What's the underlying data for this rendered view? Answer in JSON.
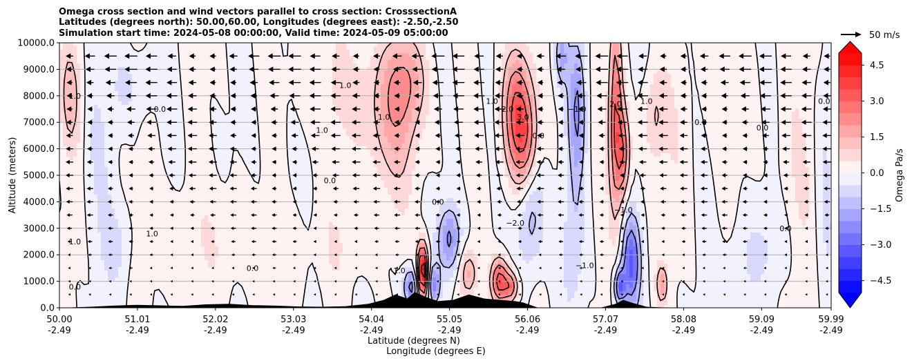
{
  "chart_data": {
    "type": "heatmap",
    "title_lines": [
      "Omega cross section and wind vectors parallel to cross section: CrosssectionA",
      "Latitudes (degrees north): 50.00,60.00, Longitudes (degrees east): -2.50,-2.50",
      "Simulation start time: 2024-05-08 00:00:00, Valid time: 2024-05-09 05:00:00"
    ],
    "xlabel_1": "Latitude (degrees N)",
    "xlabel_2": "Longitude (degrees E)",
    "ylabel": "Altitude (meters)",
    "xlim": [
      50.0,
      59.99
    ],
    "ylim": [
      0,
      10000
    ],
    "x_ticks": [
      {
        "lat": "50.00",
        "lon": "-2.49",
        "v": 50.0
      },
      {
        "lat": "51.01",
        "lon": "-2.49",
        "v": 51.01
      },
      {
        "lat": "52.02",
        "lon": "-2.49",
        "v": 52.02
      },
      {
        "lat": "53.03",
        "lon": "-2.49",
        "v": 53.03
      },
      {
        "lat": "54.04",
        "lon": "-2.49",
        "v": 54.04
      },
      {
        "lat": "55.05",
        "lon": "-2.49",
        "v": 55.05
      },
      {
        "lat": "56.06",
        "lon": "-2.49",
        "v": 56.06
      },
      {
        "lat": "57.07",
        "lon": "-2.49",
        "v": 57.07
      },
      {
        "lat": "58.08",
        "lon": "-2.49",
        "v": 58.08
      },
      {
        "lat": "59.09",
        "lon": "-2.49",
        "v": 59.09
      },
      {
        "lat": "59.99",
        "lon": "-2.49",
        "v": 59.99
      }
    ],
    "y_ticks": [
      {
        "label": "0.0",
        "v": 0
      },
      {
        "label": "1000.0",
        "v": 1000
      },
      {
        "label": "2000.0",
        "v": 2000
      },
      {
        "label": "3000.0",
        "v": 3000
      },
      {
        "label": "4000.0",
        "v": 4000
      },
      {
        "label": "5000.0",
        "v": 5000
      },
      {
        "label": "6000.0",
        "v": 6000
      },
      {
        "label": "7000.0",
        "v": 7000
      },
      {
        "label": "8000.0",
        "v": 8000
      },
      {
        "label": "9000.0",
        "v": 9000
      },
      {
        "label": "10000.0",
        "v": 10000
      }
    ],
    "colorbar": {
      "label": "Omega Pa/s",
      "range": [
        -5.0,
        5.0
      ],
      "ticks": [
        {
          "label": "4.5",
          "v": 4.5
        },
        {
          "label": "3.0",
          "v": 3.0
        },
        {
          "label": "1.5",
          "v": 1.5
        },
        {
          "label": "0.0",
          "v": 0.0
        },
        {
          "label": "−1.5",
          "v": -1.5
        },
        {
          "label": "−3.0",
          "v": -3.0
        },
        {
          "label": "−4.5",
          "v": -4.5
        }
      ],
      "colormap": "bwr"
    },
    "quiver_key": {
      "label": "50 m/s"
    },
    "contour_labels": [
      {
        "text": "1.0",
        "x": 50.2,
        "y": 8000
      },
      {
        "text": "0.0",
        "x": 51.3,
        "y": 7500
      },
      {
        "text": "1.0",
        "x": 51.2,
        "y": 2800
      },
      {
        "text": "0.0",
        "x": 53.5,
        "y": 4800
      },
      {
        "text": "1.0",
        "x": 53.4,
        "y": 6700
      },
      {
        "text": "1.0",
        "x": 53.7,
        "y": 8400
      },
      {
        "text": "1.0",
        "x": 54.2,
        "y": 7200
      },
      {
        "text": "0.0",
        "x": 54.9,
        "y": 4000
      },
      {
        "text": "2.0",
        "x": 55.8,
        "y": 7500
      },
      {
        "text": "1.0",
        "x": 55.6,
        "y": 7800
      },
      {
        "text": "3.0",
        "x": 56.0,
        "y": 7200
      },
      {
        "text": "0.0",
        "x": 56.2,
        "y": 6500
      },
      {
        "text": "−1.0",
        "x": 56.7,
        "y": 7500
      },
      {
        "text": "−2.0",
        "x": 55.9,
        "y": 3200
      },
      {
        "text": "−1.0",
        "x": 57.3,
        "y": 3700
      },
      {
        "text": "−1.0",
        "x": 56.8,
        "y": 1600
      },
      {
        "text": "2.0",
        "x": 57.2,
        "y": 7700
      },
      {
        "text": "1.0",
        "x": 57.6,
        "y": 7800
      },
      {
        "text": "0.0",
        "x": 58.3,
        "y": 7000
      },
      {
        "text": "0.0",
        "x": 59.1,
        "y": 6800
      },
      {
        "text": "0.0",
        "x": 59.9,
        "y": 7800
      },
      {
        "text": "0.0",
        "x": 59.4,
        "y": 3000
      },
      {
        "text": "1.0",
        "x": 54.4,
        "y": 1400
      },
      {
        "text": "0.0",
        "x": 50.2,
        "y": 800
      },
      {
        "text": "1.0",
        "x": 50.2,
        "y": 2500
      },
      {
        "text": "0.0",
        "x": 52.5,
        "y": 1500
      }
    ],
    "terrain": [
      [
        50.0,
        0
      ],
      [
        50.4,
        40
      ],
      [
        50.7,
        80
      ],
      [
        51.0,
        110
      ],
      [
        51.3,
        90
      ],
      [
        51.6,
        70
      ],
      [
        51.9,
        130
      ],
      [
        52.2,
        150
      ],
      [
        52.5,
        100
      ],
      [
        52.8,
        80
      ],
      [
        53.1,
        50
      ],
      [
        53.4,
        40
      ],
      [
        53.7,
        60
      ],
      [
        54.0,
        150
      ],
      [
        54.2,
        300
      ],
      [
        54.35,
        500
      ],
      [
        54.5,
        350
      ],
      [
        54.6,
        600
      ],
      [
        54.75,
        400
      ],
      [
        54.9,
        250
      ],
      [
        55.1,
        300
      ],
      [
        55.3,
        500
      ],
      [
        55.5,
        350
      ],
      [
        55.7,
        300
      ],
      [
        55.9,
        250
      ],
      [
        56.0,
        200
      ],
      [
        56.2,
        0
      ],
      [
        57.0,
        0
      ],
      [
        57.2,
        150
      ],
      [
        57.3,
        300
      ],
      [
        57.4,
        200
      ],
      [
        57.5,
        120
      ],
      [
        57.6,
        40
      ],
      [
        57.9,
        0
      ],
      [
        59.99,
        0
      ]
    ]
  }
}
